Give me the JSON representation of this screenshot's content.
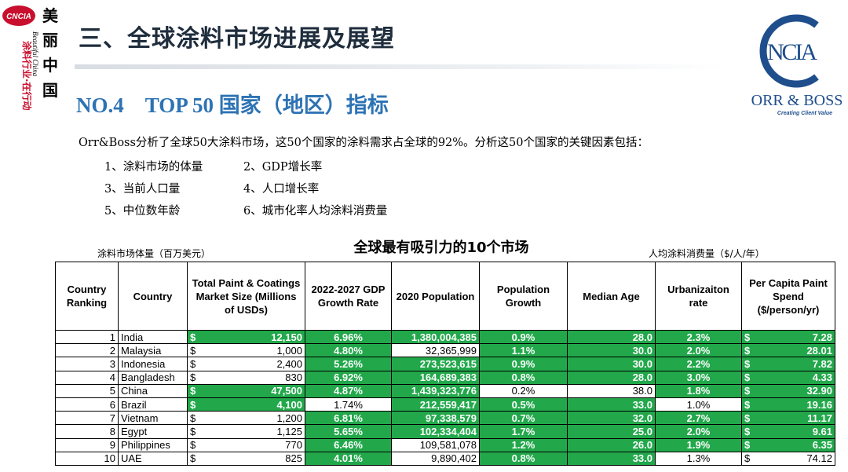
{
  "header": {
    "title": "三、全球涂料市场进展及展望",
    "left_logo": {
      "abbr": "CNCIA",
      "slogan": [
        "美",
        "丽",
        "中",
        "国"
      ],
      "latin": "Beautiful China",
      "motto": "涂料行业·在行动"
    },
    "right_logo": {
      "abbr": "NCIA",
      "brand": "ORR & BOSS",
      "tagline": "Creating Client Value"
    }
  },
  "subtitle": "NO.4　TOP 50 国家（地区）指标",
  "intro": "Orr&Boss分析了全球50大涂料市场，这50个国家的涂料需求占全球的92%。分析这50个国家的关键因素包括：",
  "factors": [
    "1、涂料市场的体量",
    "2、GDP增长率",
    "3、当前人口量",
    "4、人口增长率",
    "5、中位数年龄",
    "6、城市化率人均涂料消费量"
  ],
  "table": {
    "title": "全球最有吸引力的10个市场",
    "left_note": "涂料市场体量（百万美元）",
    "right_note": "人均涂料消费量（$/人/年）",
    "currency": "$",
    "headers": [
      "Country Ranking",
      "Country",
      "Total Paint & Coatings Market Size (Millions of USDs)",
      "2022-2027 GDP Growth Rate",
      "2020 Population",
      "Population Growth",
      "Median Age",
      "Urbanizaiton rate",
      "Per Capita Paint Spend ($/person/yr)"
    ],
    "rows": [
      [
        "1",
        "India",
        "12,150",
        "6.96%",
        "1,380,004,385",
        "0.9%",
        "28.0",
        "2.3%",
        "7.28"
      ],
      [
        "2",
        "Malaysia",
        "1,000",
        "4.80%",
        "32,365,999",
        "1.1%",
        "30.0",
        "2.0%",
        "28.01"
      ],
      [
        "3",
        "Indonesia",
        "2,400",
        "5.26%",
        "273,523,615",
        "0.9%",
        "30.0",
        "2.2%",
        "7.82"
      ],
      [
        "4",
        "Bangladesh",
        "830",
        "6.92%",
        "164,689,383",
        "0.8%",
        "28.0",
        "3.0%",
        "4.33"
      ],
      [
        "5",
        "China",
        "47,500",
        "4.87%",
        "1,439,323,776",
        "0.2%",
        "38.0",
        "1.8%",
        "32.90"
      ],
      [
        "6",
        "Brazil",
        "4,100",
        "1.74%",
        "212,559,417",
        "0.5%",
        "33.0",
        "1.0%",
        "19.16"
      ],
      [
        "7",
        "Vietnam",
        "1,200",
        "6.81%",
        "97,338,579",
        "0.7%",
        "32.0",
        "2.7%",
        "11.17"
      ],
      [
        "8",
        "Egypt",
        "1,125",
        "5.65%",
        "102,334,404",
        "1.7%",
        "25.0",
        "2.0%",
        "9.61"
      ],
      [
        "9",
        "Philippines",
        "770",
        "6.46%",
        "109,581,078",
        "1.2%",
        "26.0",
        "1.9%",
        "6.35"
      ],
      [
        "10",
        "UAE",
        "825",
        "4.01%",
        "9,890,402",
        "0.8%",
        "33.0",
        "1.3%",
        "74.12"
      ]
    ],
    "highlight": [
      [
        false,
        false,
        true,
        true,
        true,
        true,
        true,
        true,
        true
      ],
      [
        false,
        false,
        false,
        true,
        false,
        true,
        true,
        true,
        true
      ],
      [
        false,
        false,
        false,
        true,
        true,
        true,
        true,
        true,
        true
      ],
      [
        false,
        false,
        false,
        true,
        true,
        true,
        true,
        true,
        true
      ],
      [
        false,
        false,
        true,
        true,
        true,
        false,
        false,
        true,
        true
      ],
      [
        false,
        false,
        true,
        false,
        true,
        true,
        true,
        false,
        true
      ],
      [
        false,
        false,
        false,
        true,
        true,
        true,
        true,
        true,
        true
      ],
      [
        false,
        false,
        false,
        true,
        true,
        true,
        true,
        true,
        true
      ],
      [
        false,
        false,
        false,
        true,
        false,
        true,
        true,
        true,
        true
      ],
      [
        false,
        false,
        false,
        true,
        false,
        true,
        true,
        false,
        false
      ]
    ]
  }
}
